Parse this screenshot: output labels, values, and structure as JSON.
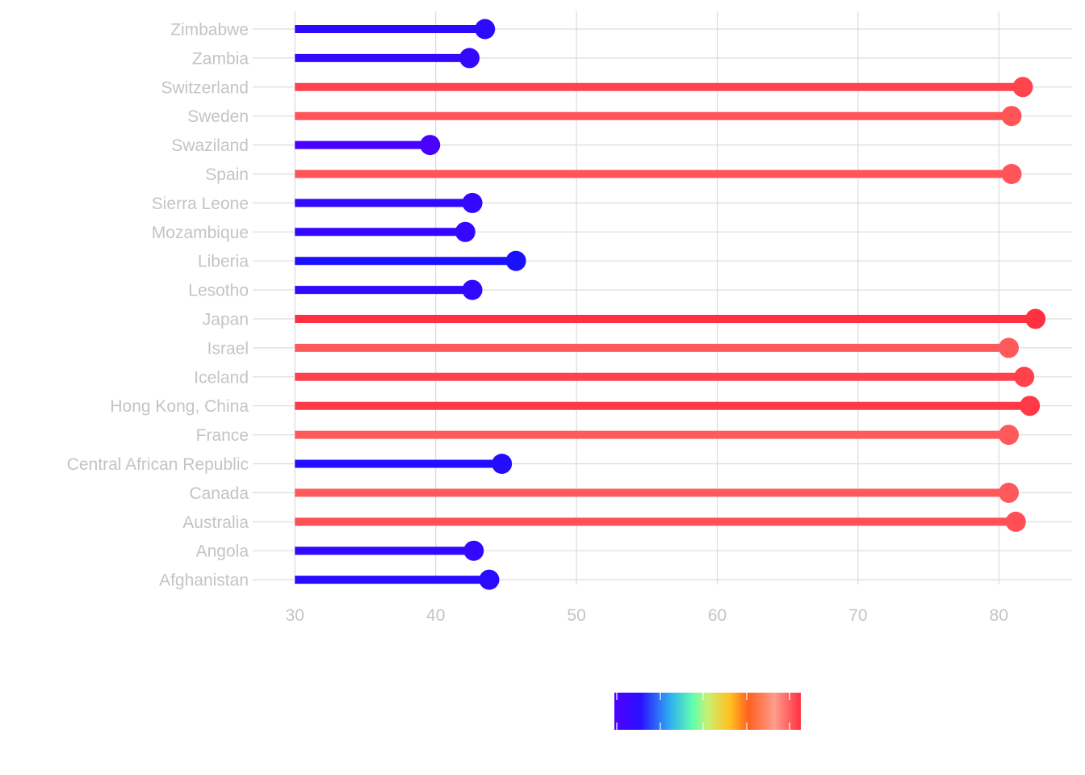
{
  "chart_data": {
    "type": "lollipop",
    "orientation": "horizontal",
    "baseline": 30,
    "xlim": [
      27,
      85.2
    ],
    "xticks": [
      30,
      40,
      50,
      60,
      70,
      80
    ],
    "title": "",
    "xlabel": "",
    "ylabel": "",
    "grid": true,
    "legend": {
      "type": "colorbar",
      "placement": "bottom-center",
      "labels": []
    },
    "categories": [
      "Zimbabwe",
      "Zambia",
      "Switzerland",
      "Sweden",
      "Swaziland",
      "Spain",
      "Sierra Leone",
      "Mozambique",
      "Liberia",
      "Lesotho",
      "Japan",
      "Israel",
      "Iceland",
      "Hong Kong, China",
      "France",
      "Central African Republic",
      "Canada",
      "Australia",
      "Angola",
      "Afghanistan"
    ],
    "values": [
      43.5,
      42.4,
      81.7,
      80.9,
      39.6,
      80.9,
      42.6,
      42.1,
      45.7,
      42.6,
      82.6,
      80.7,
      81.8,
      82.2,
      80.7,
      44.7,
      80.7,
      81.2,
      42.7,
      43.8
    ],
    "colormap": [
      "#4400ff",
      "#2200ff",
      "#33ddcc",
      "#99ff99",
      "#ffcc22",
      "#ff6622",
      "#ff9988",
      "#ff3344"
    ]
  }
}
